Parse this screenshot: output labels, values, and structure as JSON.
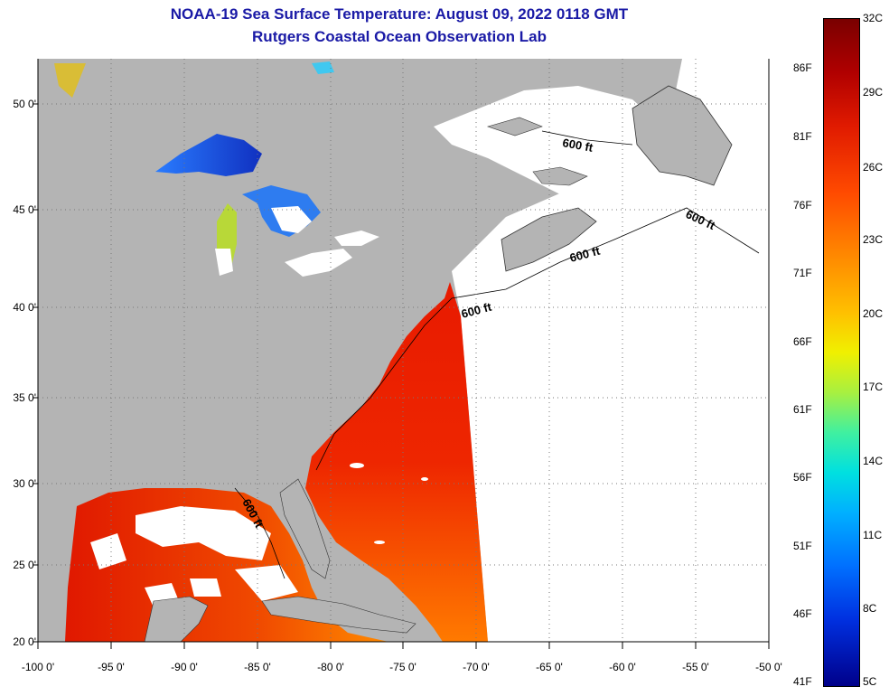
{
  "title": {
    "line1": "NOAA-19 Sea Surface Temperature:  August 09, 2022 0118 GMT",
    "line2": "Rutgers Coastal Ocean Observation Lab"
  },
  "map": {
    "lat_labels": [
      "50 0'",
      "45 0'",
      "40 0'",
      "35 0'",
      "30 0'",
      "25 0'",
      "20 0'"
    ],
    "lon_labels": [
      "-100 0'",
      "-95 0'",
      "-90 0'",
      "-85 0'",
      "-80 0'",
      "-75 0'",
      "-70 0'",
      "-65 0'",
      "-60 0'",
      "-55 0'",
      "-50 0'"
    ],
    "isobath_labels": [
      "600 ft",
      "600 ft",
      "600 ft",
      "600 ft",
      "600 ft"
    ],
    "land_color": "#b4b4b4",
    "nodata_color": "#ffffff"
  },
  "colorbar": {
    "fahrenheit_labels": [
      "86F",
      "81F",
      "76F",
      "71F",
      "66F",
      "61F",
      "56F",
      "51F",
      "46F",
      "41F"
    ],
    "celsius_labels": [
      "32C",
      "29C",
      "26C",
      "23C",
      "20C",
      "17C",
      "14C",
      "11C",
      "8C",
      "5C"
    ]
  }
}
